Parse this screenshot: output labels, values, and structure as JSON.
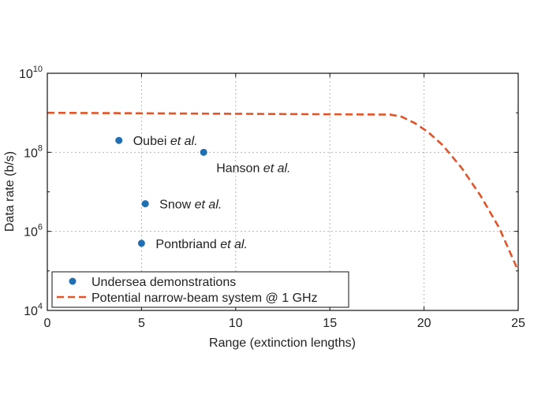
{
  "chart_data": {
    "type": "scatter",
    "xlabel": "Range (extinction lengths)",
    "ylabel": "Data rate (b/s)",
    "xlim": [
      0,
      25
    ],
    "ylim_log10": [
      4,
      10
    ],
    "y_scale": "log",
    "grid": true,
    "x_ticks": [
      {
        "value": 0,
        "label": "0"
      },
      {
        "value": 5,
        "label": "5"
      },
      {
        "value": 10,
        "label": "10"
      },
      {
        "value": 15,
        "label": "15"
      },
      {
        "value": 20,
        "label": "20"
      },
      {
        "value": 25,
        "label": "25"
      }
    ],
    "y_ticks": [
      {
        "value": 10000,
        "base": "10",
        "exp": "4"
      },
      {
        "value": 1000000,
        "base": "10",
        "exp": "6"
      },
      {
        "value": 100000000,
        "base": "10",
        "exp": "8"
      },
      {
        "value": 10000000000,
        "base": "10",
        "exp": "10"
      }
    ],
    "series": [
      {
        "name": "Undersea demonstrations",
        "kind": "scatter",
        "color": "#1f6fb2",
        "points": [
          {
            "x": 3.8,
            "y": 200000000,
            "label_main": "Oubei ",
            "label_italic": "et al.",
            "label_side": "right"
          },
          {
            "x": 8.3,
            "y": 100000000,
            "label_main": "Hanson ",
            "label_italic": "et al.",
            "label_side": "below-right"
          },
          {
            "x": 5.2,
            "y": 5000000,
            "label_main": "Snow ",
            "label_italic": "et al.",
            "label_side": "right"
          },
          {
            "x": 5.0,
            "y": 500000,
            "label_main": "Pontbriand ",
            "label_italic": "et al.",
            "label_side": "right"
          }
        ]
      },
      {
        "name": "Potential narrow-beam system @ 1 GHz",
        "kind": "line",
        "style": "dashed",
        "color": "#e0552a",
        "points": [
          {
            "x": 0,
            "y": 1000000000
          },
          {
            "x": 18.2,
            "y": 900000000
          },
          {
            "x": 18.8,
            "y": 800000000
          },
          {
            "x": 19.5,
            "y": 550000000
          },
          {
            "x": 20.2,
            "y": 330000000
          },
          {
            "x": 21,
            "y": 150000000
          },
          {
            "x": 22,
            "y": 40000000
          },
          {
            "x": 23,
            "y": 8000000
          },
          {
            "x": 24,
            "y": 1200000
          },
          {
            "x": 25,
            "y": 100000
          }
        ]
      }
    ],
    "legend_position": "lower-left"
  }
}
